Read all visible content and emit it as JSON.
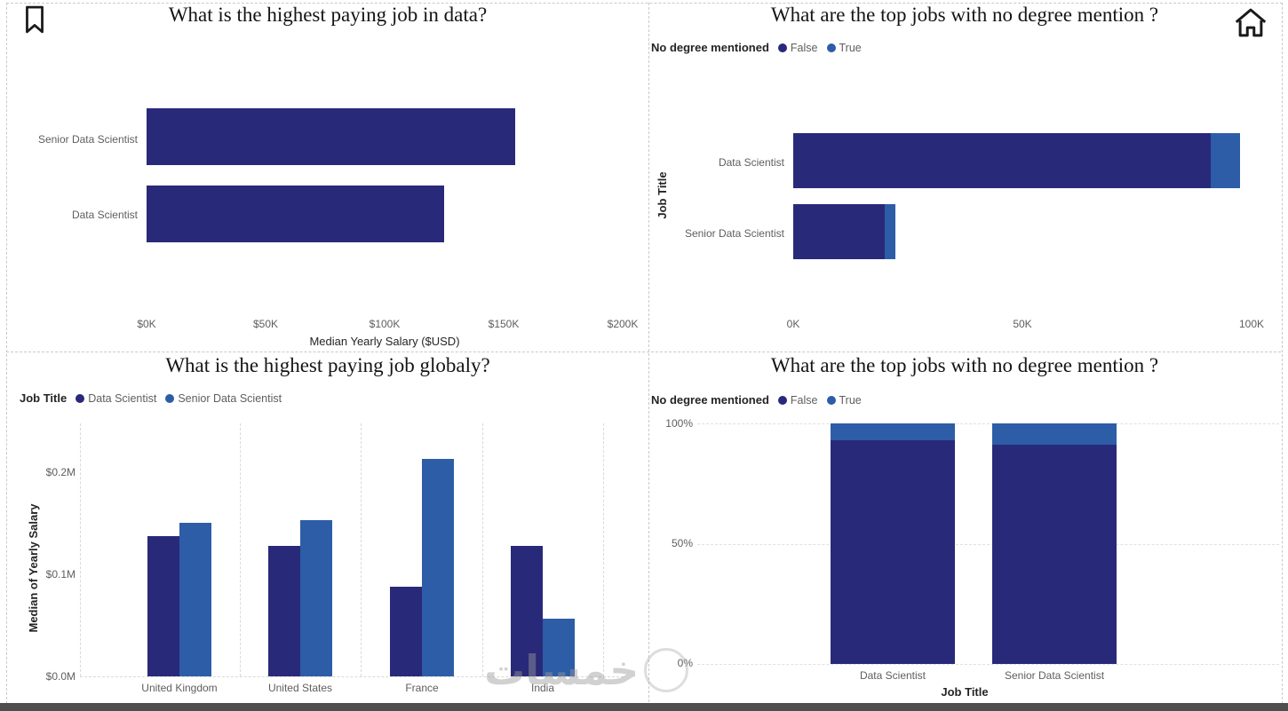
{
  "palette": {
    "navy": "#29297A",
    "blue": "#2D5DA6"
  },
  "icons": {
    "bookmark": "bookmark-icon",
    "home": "home-icon"
  },
  "watermark": {
    "text": "خمسات"
  },
  "chart_data": [
    {
      "type": "bar",
      "orientation": "horizontal",
      "title": "What is the highest paying job in data?",
      "categories": [
        "Senior Data Scientist",
        "Data Scientist"
      ],
      "values": [
        155000,
        125000
      ],
      "color": "navy",
      "xlabel": "Median Yearly Salary ($USD)",
      "x_ticks": [
        "$0K",
        "$50K",
        "$100K",
        "$150K",
        "$200K"
      ],
      "xlim": [
        0,
        200000
      ]
    },
    {
      "type": "bar",
      "orientation": "horizontal",
      "stacked": true,
      "title": "What are the top jobs with no degree mention ?",
      "legend_title": "No degree mentioned",
      "categories": [
        "Data Scientist",
        "Senior Data Scientist"
      ],
      "series": [
        {
          "name": "False",
          "color": "navy",
          "values": [
            91000,
            20000
          ]
        },
        {
          "name": "True",
          "color": "blue",
          "values": [
            6500,
            2200
          ]
        }
      ],
      "ylabel": "Job Title",
      "x_ticks": [
        "0K",
        "50K",
        "100K"
      ],
      "xlim": [
        0,
        100000
      ]
    },
    {
      "type": "bar",
      "orientation": "vertical",
      "grouped": true,
      "title": "What is the highest paying job globaly?",
      "legend_title": "Job Title",
      "categories": [
        "United Kingdom",
        "United States",
        "France",
        "India"
      ],
      "series": [
        {
          "name": "Data Scientist",
          "color": "navy",
          "values": [
            0.139,
            0.129,
            0.089,
            0.129
          ]
        },
        {
          "name": "Senior Data Scientist",
          "color": "blue",
          "values": [
            0.152,
            0.154,
            0.215,
            0.057
          ]
        }
      ],
      "ylabel": "Median of Yearly Salary",
      "y_ticks": [
        "$0.0M",
        "$0.1M",
        "$0.2M"
      ],
      "ylim": [
        0,
        0.25
      ]
    },
    {
      "type": "bar",
      "orientation": "vertical",
      "stacked": true,
      "percent": true,
      "title": "What are the top jobs with no degree mention ?",
      "legend_title": "No degree mentioned",
      "categories": [
        "Data Scientist",
        "Senior Data Scientist"
      ],
      "series": [
        {
          "name": "False",
          "color": "navy",
          "values": [
            93,
            91
          ]
        },
        {
          "name": "True",
          "color": "blue",
          "values": [
            7,
            9
          ]
        }
      ],
      "xlabel": "Job Title",
      "y_ticks": [
        "0%",
        "50%",
        "100%"
      ],
      "ylim": [
        0,
        100
      ]
    }
  ]
}
